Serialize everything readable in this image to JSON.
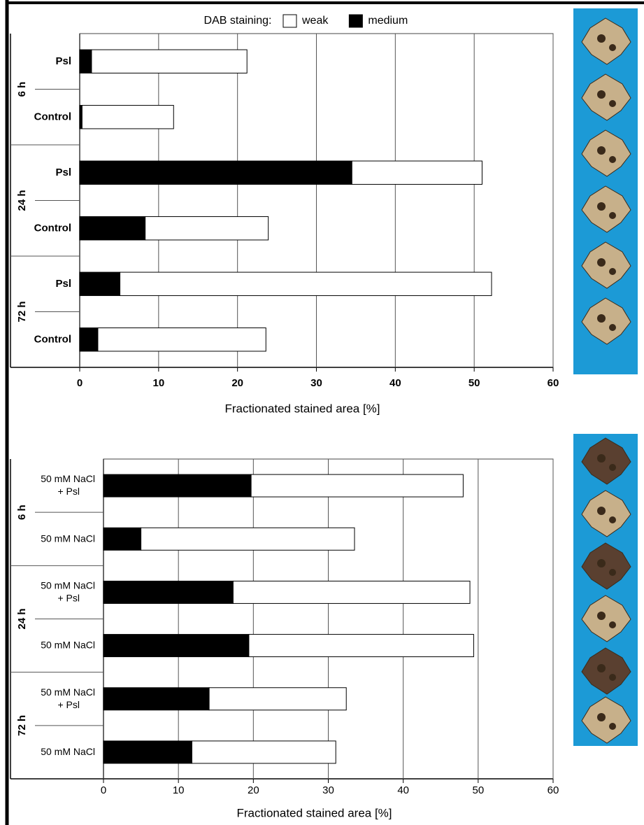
{
  "chart_data": [
    {
      "type": "bar",
      "orientation": "horizontal",
      "stacked": true,
      "legend_title": "DAB staining:",
      "categories": [
        [
          "Psl"
        ],
        [
          "Control"
        ],
        [
          "Psl"
        ],
        [
          "Control"
        ],
        [
          "Psl"
        ],
        [
          "Control"
        ]
      ],
      "groups": [
        "6 h",
        "24 h",
        "72 h"
      ],
      "series": [
        {
          "name": "medium",
          "color": "#000000",
          "values": [
            1.5,
            0.3,
            34.5,
            8.3,
            5.1,
            2.3
          ]
        },
        {
          "name": "weak",
          "color": "#ffffff",
          "values": [
            19.7,
            11.6,
            16.5,
            15.6,
            47.1,
            21.3
          ]
        }
      ],
      "xlim": [
        0,
        60
      ],
      "xticks": [
        0,
        10,
        20,
        30,
        40,
        50,
        60
      ],
      "grid": true,
      "xlabel": "Fractionated stained area [%]"
    },
    {
      "type": "bar",
      "orientation": "horizontal",
      "stacked": true,
      "categories": [
        [
          "50 mM NaCl",
          "+ Psl"
        ],
        [
          "50 mM NaCl"
        ],
        [
          "50 mM NaCl",
          "+ Psl"
        ],
        [
          "50 mM NaCl"
        ],
        [
          "50 mM NaCl",
          "+ Psl"
        ],
        [
          "50 mM NaCl"
        ]
      ],
      "groups": [
        "6 h",
        "24 h",
        "72 h"
      ],
      "series": [
        {
          "name": "medium",
          "color": "#000000",
          "values": [
            19.7,
            5.0,
            17.3,
            19.4,
            14.1,
            11.8
          ]
        },
        {
          "name": "weak",
          "color": "#ffffff",
          "values": [
            28.3,
            28.5,
            31.6,
            30.0,
            18.3,
            19.2
          ]
        }
      ],
      "xlim": [
        0,
        60
      ],
      "xticks": [
        0,
        10,
        20,
        30,
        40,
        50,
        60
      ],
      "grid": true,
      "xlabel": "Fractionated stained area [%]"
    }
  ]
}
